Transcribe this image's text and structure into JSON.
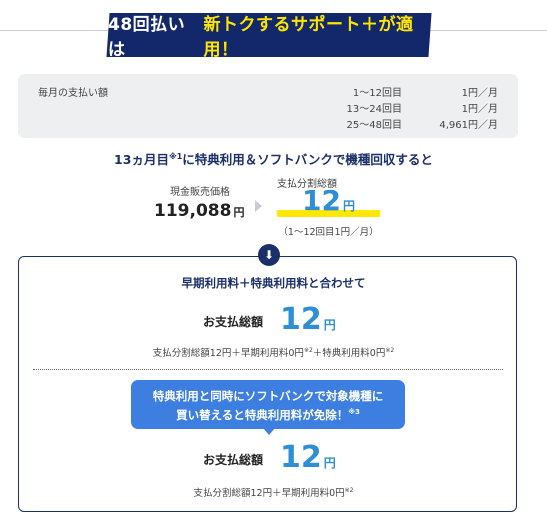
{
  "banner": {
    "part1": "48回払いは",
    "part2": "新トクするサポート＋が適用！"
  },
  "monthly": {
    "label": "毎月の支払い額",
    "rows": [
      {
        "period": "1～12回目",
        "amount": "1円／月"
      },
      {
        "period": "13～24回目",
        "amount": "1円／月"
      },
      {
        "period": "25～48回目",
        "amount": "4,961円／月"
      }
    ]
  },
  "condition": {
    "prefix": "13ヵ月目",
    "note": "※1",
    "suffix": "に特典利用＆ソフトバンクで機種回収すると"
  },
  "cash": {
    "label": "現金販売価格",
    "amount": "119,088",
    "unit": "円"
  },
  "installment": {
    "label": "支払分割総額",
    "amount": "12",
    "unit": "円",
    "note": "（1～12回目1円／月）"
  },
  "summary1": {
    "heading": "早期利用料＋特典利用料と合わせて",
    "total_label": "お支払総額",
    "amount": "12",
    "unit": "円",
    "breakdown_a": "支払分割総額12円＋早期利用料0円",
    "note_a": "※2",
    "breakdown_b": "＋特典利用料0円",
    "note_b": "※2"
  },
  "bubble": {
    "line1": "特典利用と同時にソフトバンクで対象機種に",
    "line2": "買い替えると特典利用料が免除！",
    "note": "※3"
  },
  "summary2": {
    "total_label": "お支払総額",
    "amount": "12",
    "unit": "円",
    "breakdown": "支払分割総額12円＋早期利用料0円",
    "note": "※2"
  }
}
